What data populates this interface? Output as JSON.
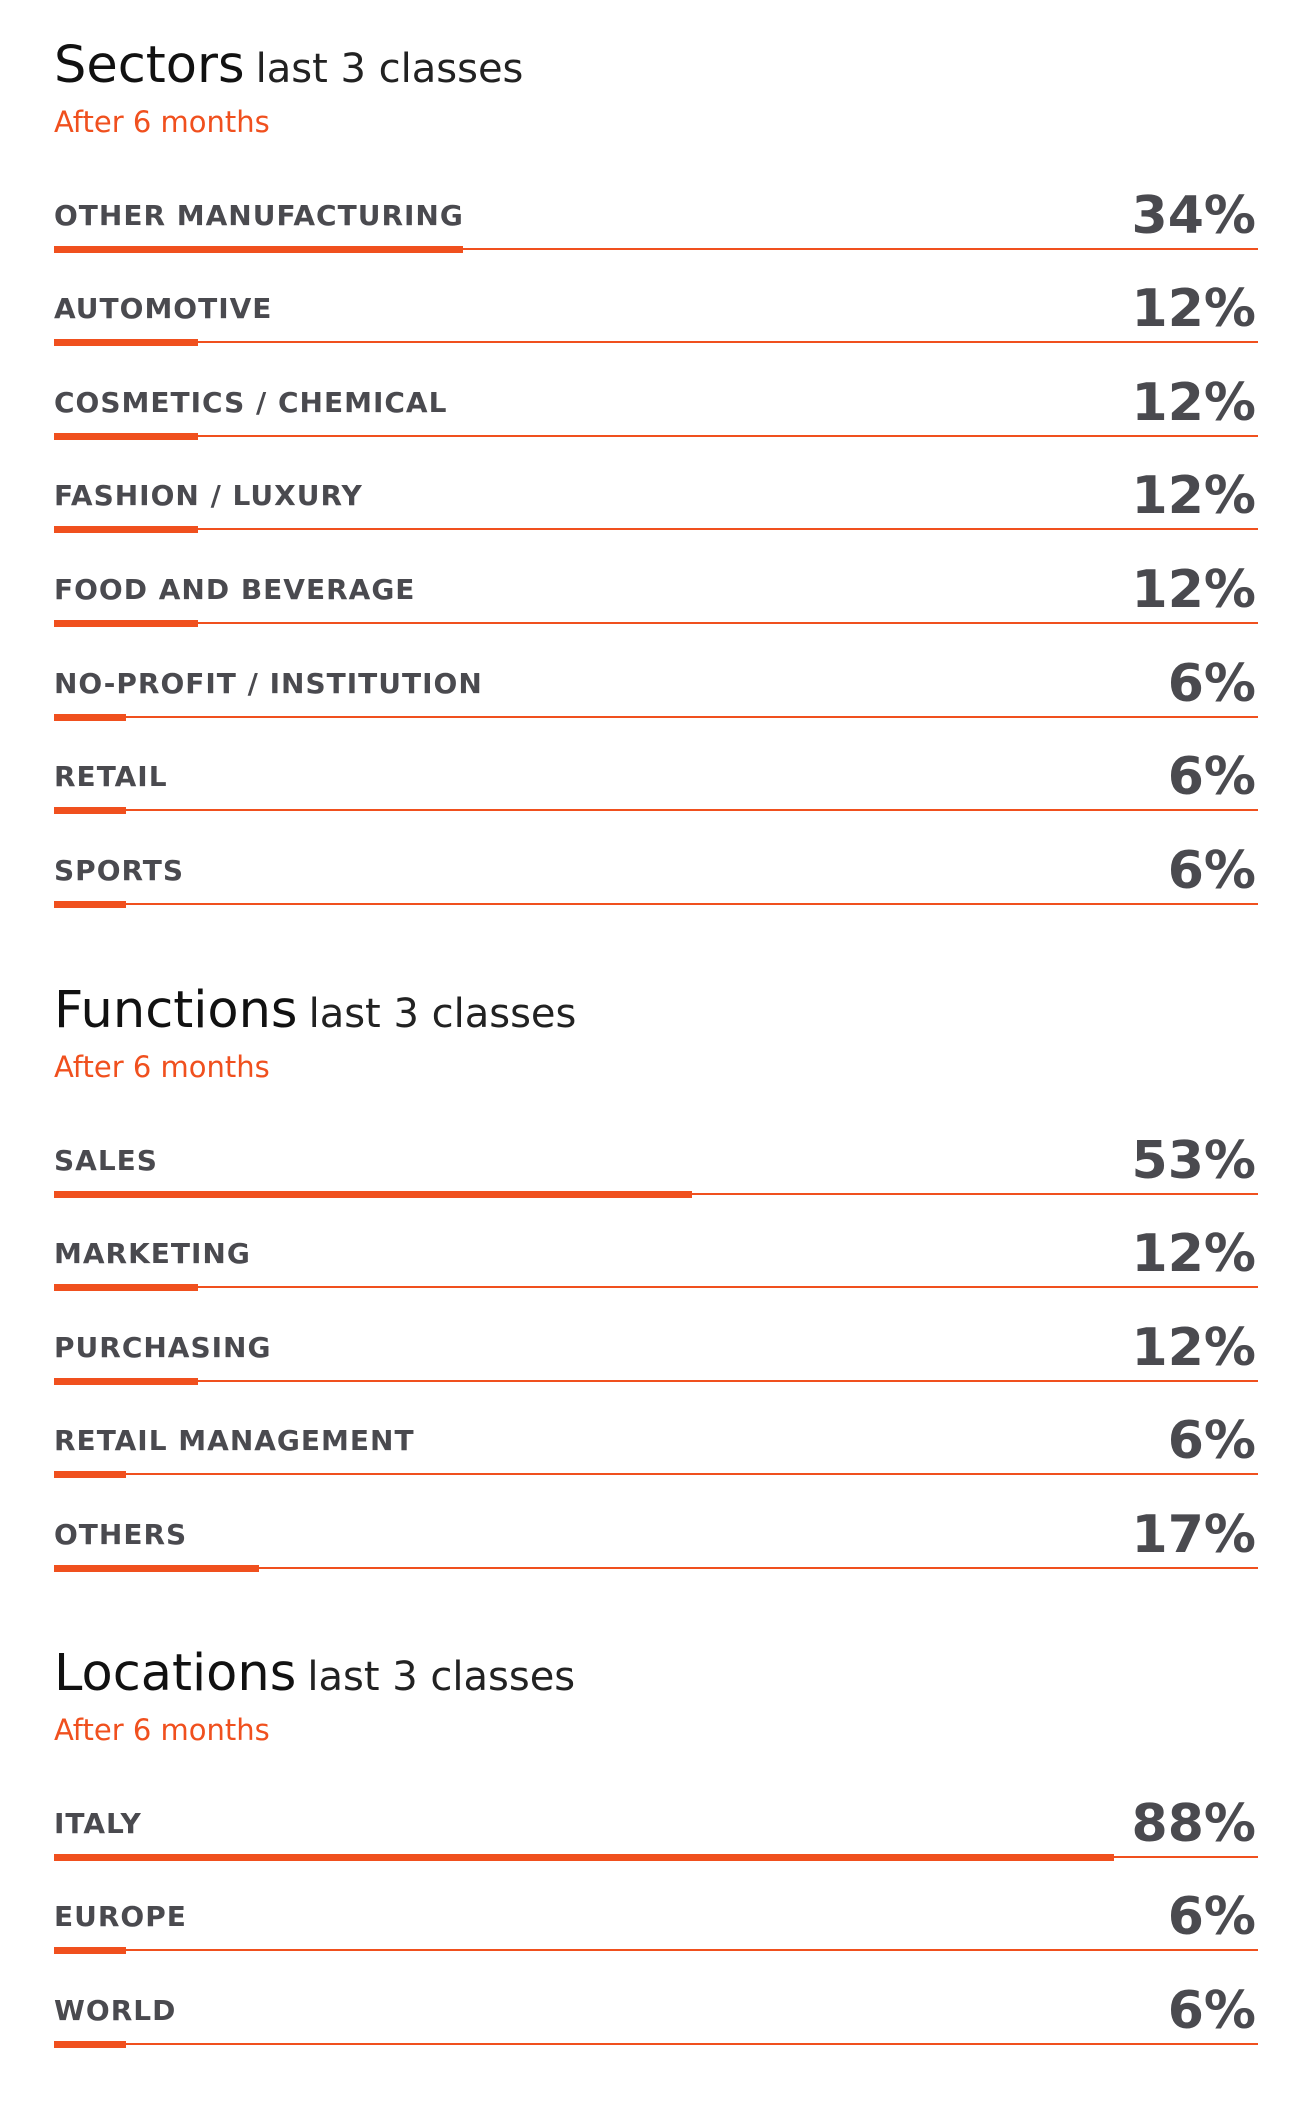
{
  "colors": {
    "accent": "#f0501e",
    "text": "#4a4a4f",
    "title": "#111111"
  },
  "chart_data": [
    {
      "type": "bar",
      "title": "Sectors",
      "subtitle": "last 3 classes",
      "note": "After 6 months",
      "categories": [
        "OTHER MANUFACTURING",
        "AUTOMOTIVE",
        "COSMETICS / CHEMICAL",
        "FASHION / LUXURY",
        "FOOD AND BEVERAGE",
        "NO-PROFIT / INSTITUTION",
        "RETAIL",
        "SPORTS"
      ],
      "values": [
        34,
        12,
        12,
        12,
        12,
        6,
        6,
        6
      ],
      "labels": [
        "34%",
        "12%",
        "12%",
        "12%",
        "12%",
        "6%",
        "6%",
        "6%"
      ],
      "ylim": [
        0,
        100
      ]
    },
    {
      "type": "bar",
      "title": "Functions",
      "subtitle": "last 3 classes",
      "note": "After 6 months",
      "categories": [
        "SALES",
        "MARKETING",
        "PURCHASING",
        "RETAIL MANAGEMENT",
        "OTHERS"
      ],
      "values": [
        53,
        12,
        12,
        6,
        17
      ],
      "labels": [
        "53%",
        "12%",
        "12%",
        "6%",
        "17%"
      ],
      "ylim": [
        0,
        100
      ]
    },
    {
      "type": "bar",
      "title": "Locations",
      "subtitle": "last 3 classes",
      "note": "After 6 months",
      "categories": [
        "ITALY",
        "EUROPE",
        "WORLD"
      ],
      "values": [
        88,
        6,
        6
      ],
      "labels": [
        "88%",
        "6%",
        "6%"
      ],
      "ylim": [
        0,
        100
      ]
    }
  ]
}
